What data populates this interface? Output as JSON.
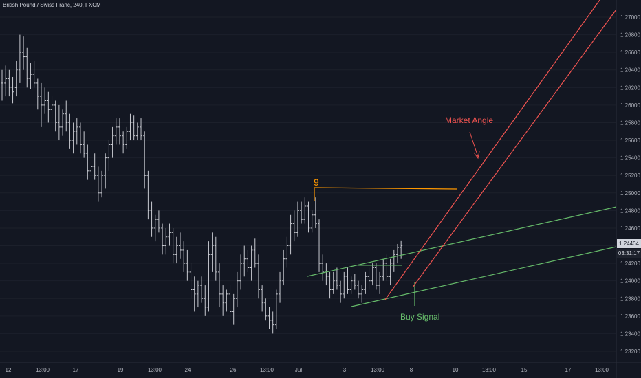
{
  "header": {
    "title": "British Pound / Swiss Franc, 240, FXCM"
  },
  "chart_data": {
    "type": "ohlc",
    "symbol": "British Pound / Swiss Franc",
    "interval": "240",
    "source": "FXCM",
    "y_ticks": [
      1.232,
      1.234,
      1.236,
      1.238,
      1.24,
      1.242,
      1.244,
      1.246,
      1.248,
      1.25,
      1.252,
      1.254,
      1.256,
      1.258,
      1.26,
      1.262,
      1.264,
      1.266,
      1.268,
      1.27
    ],
    "ylim": [
      1.2312,
      1.2718
    ],
    "x_ticks": [
      "12",
      "13:00",
      "17",
      "19",
      "13:00",
      "24",
      "26",
      "13:00",
      "Jul",
      "3",
      "13:00",
      "8",
      "10",
      "13:00",
      "15",
      "17",
      "13:00"
    ],
    "last_price": "1.24404",
    "countdown": "03:31:17",
    "annotations": [
      {
        "text": "9",
        "color": "#ff9800"
      },
      {
        "text": "Market Angle",
        "color": "#ef5350"
      },
      {
        "text": "Buy Signal",
        "color": "#66bb6a"
      }
    ],
    "bars": [
      [
        1.2625,
        1.264,
        1.2605,
        1.2625
      ],
      [
        1.2625,
        1.2645,
        1.261,
        1.263
      ],
      [
        1.263,
        1.264,
        1.261,
        1.262
      ],
      [
        1.262,
        1.2632,
        1.2602,
        1.2615
      ],
      [
        1.262,
        1.265,
        1.261,
        1.264
      ],
      [
        1.264,
        1.268,
        1.2625,
        1.266
      ],
      [
        1.266,
        1.2678,
        1.264,
        1.2655
      ],
      [
        1.2655,
        1.2665,
        1.262,
        1.263
      ],
      [
        1.263,
        1.2648,
        1.2618,
        1.2635
      ],
      [
        1.2635,
        1.265,
        1.262,
        1.2625
      ],
      [
        1.2625,
        1.263,
        1.2595,
        1.261
      ],
      [
        1.261,
        1.2625,
        1.2575,
        1.26
      ],
      [
        1.26,
        1.262,
        1.259,
        1.2605
      ],
      [
        1.2605,
        1.2615,
        1.258,
        1.2595
      ],
      [
        1.2595,
        1.261,
        1.2585,
        1.26
      ],
      [
        1.26,
        1.2605,
        1.257,
        1.258
      ],
      [
        1.258,
        1.26,
        1.256,
        1.2575
      ],
      [
        1.2575,
        1.2595,
        1.2565,
        1.259
      ],
      [
        1.259,
        1.2605,
        1.257,
        1.258
      ],
      [
        1.258,
        1.259,
        1.255,
        1.256
      ],
      [
        1.256,
        1.258,
        1.2545,
        1.257
      ],
      [
        1.257,
        1.2585,
        1.2555,
        1.2575
      ],
      [
        1.2575,
        1.258,
        1.2545,
        1.2555
      ],
      [
        1.2555,
        1.257,
        1.254,
        1.2545
      ],
      [
        1.2545,
        1.2555,
        1.2515,
        1.2525
      ],
      [
        1.2525,
        1.254,
        1.251,
        1.253
      ],
      [
        1.253,
        1.2545,
        1.2515,
        1.252
      ],
      [
        1.252,
        1.253,
        1.249,
        1.25
      ],
      [
        1.25,
        1.2525,
        1.2495,
        1.252
      ],
      [
        1.252,
        1.2545,
        1.2505,
        1.254
      ],
      [
        1.254,
        1.256,
        1.2525,
        1.2555
      ],
      [
        1.2555,
        1.2575,
        1.254,
        1.2565
      ],
      [
        1.2565,
        1.2585,
        1.2555,
        1.2575
      ],
      [
        1.2575,
        1.2585,
        1.2555,
        1.2565
      ],
      [
        1.2565,
        1.257,
        1.2545,
        1.2555
      ],
      [
        1.2555,
        1.2575,
        1.255,
        1.257
      ],
      [
        1.257,
        1.259,
        1.256,
        1.258
      ],
      [
        1.258,
        1.2588,
        1.256,
        1.2565
      ],
      [
        1.2565,
        1.258,
        1.256,
        1.2575
      ],
      [
        1.2575,
        1.2585,
        1.256,
        1.2565
      ],
      [
        1.2565,
        1.257,
        1.2505,
        1.252
      ],
      [
        1.252,
        1.2525,
        1.247,
        1.248
      ],
      [
        1.248,
        1.249,
        1.245,
        1.246
      ],
      [
        1.246,
        1.2475,
        1.2445,
        1.247
      ],
      [
        1.247,
        1.248,
        1.2455,
        1.246
      ],
      [
        1.246,
        1.2465,
        1.243,
        1.244
      ],
      [
        1.244,
        1.246,
        1.243,
        1.245
      ],
      [
        1.245,
        1.2465,
        1.244,
        1.2455
      ],
      [
        1.2455,
        1.246,
        1.242,
        1.243
      ],
      [
        1.243,
        1.245,
        1.242,
        1.244
      ],
      [
        1.244,
        1.2455,
        1.2425,
        1.2435
      ],
      [
        1.2435,
        1.2445,
        1.241,
        1.242
      ],
      [
        1.242,
        1.2435,
        1.24,
        1.241
      ],
      [
        1.241,
        1.242,
        1.238,
        1.239
      ],
      [
        1.239,
        1.2405,
        1.2365,
        1.2385
      ],
      [
        1.2385,
        1.24,
        1.237,
        1.2395
      ],
      [
        1.2395,
        1.2405,
        1.2375,
        1.238
      ],
      [
        1.238,
        1.2395,
        1.236,
        1.237
      ],
      [
        1.237,
        1.2445,
        1.2365,
        1.243
      ],
      [
        1.243,
        1.2455,
        1.241,
        1.244
      ],
      [
        1.244,
        1.245,
        1.24,
        1.241
      ],
      [
        1.241,
        1.242,
        1.237,
        1.2385
      ],
      [
        1.2385,
        1.2395,
        1.236,
        1.2375
      ],
      [
        1.2375,
        1.239,
        1.2365,
        1.2385
      ],
      [
        1.2385,
        1.2395,
        1.2355,
        1.2365
      ],
      [
        1.2365,
        1.2385,
        1.235,
        1.238
      ],
      [
        1.238,
        1.241,
        1.237,
        1.24
      ],
      [
        1.24,
        1.243,
        1.239,
        1.242
      ],
      [
        1.242,
        1.244,
        1.2405,
        1.2425
      ],
      [
        1.2425,
        1.2435,
        1.241,
        1.2415
      ],
      [
        1.2415,
        1.244,
        1.24,
        1.2435
      ],
      [
        1.2435,
        1.2448,
        1.2415,
        1.242
      ],
      [
        1.242,
        1.243,
        1.238,
        1.239
      ],
      [
        1.239,
        1.2395,
        1.2365,
        1.2375
      ],
      [
        1.2375,
        1.238,
        1.2355,
        1.236
      ],
      [
        1.236,
        1.237,
        1.2345,
        1.2355
      ],
      [
        1.2355,
        1.2365,
        1.234,
        1.235
      ],
      [
        1.235,
        1.239,
        1.2345,
        1.2385
      ],
      [
        1.2385,
        1.241,
        1.2375,
        1.24
      ],
      [
        1.24,
        1.2435,
        1.2395,
        1.2425
      ],
      [
        1.2425,
        1.245,
        1.2415,
        1.244
      ],
      [
        1.244,
        1.2475,
        1.243,
        1.2465
      ],
      [
        1.2465,
        1.248,
        1.2445,
        1.2455
      ],
      [
        1.2455,
        1.249,
        1.245,
        1.248
      ],
      [
        1.248,
        1.249,
        1.2465,
        1.247
      ],
      [
        1.247,
        1.2495,
        1.2465,
        1.2485
      ],
      [
        1.2485,
        1.249,
        1.2455,
        1.246
      ],
      [
        1.246,
        1.248,
        1.2455,
        1.2475
      ],
      [
        1.2475,
        1.2495,
        1.246,
        1.2465
      ],
      [
        1.2465,
        1.247,
        1.241,
        1.242
      ],
      [
        1.242,
        1.243,
        1.24,
        1.241
      ],
      [
        1.241,
        1.242,
        1.2395,
        1.2405
      ],
      [
        1.2405,
        1.241,
        1.238,
        1.239
      ],
      [
        1.239,
        1.241,
        1.2385,
        1.24
      ],
      [
        1.24,
        1.2415,
        1.239,
        1.2395
      ],
      [
        1.2395,
        1.24,
        1.2375,
        1.2385
      ],
      [
        1.2385,
        1.241,
        1.238,
        1.2405
      ],
      [
        1.2405,
        1.2415,
        1.2385,
        1.239
      ],
      [
        1.239,
        1.2405,
        1.2385,
        1.24
      ],
      [
        1.24,
        1.2408,
        1.239,
        1.2395
      ],
      [
        1.2395,
        1.24,
        1.238,
        1.2385
      ],
      [
        1.2385,
        1.2395,
        1.2375,
        1.239
      ],
      [
        1.239,
        1.241,
        1.2385,
        1.2405
      ],
      [
        1.2405,
        1.2415,
        1.239,
        1.24
      ],
      [
        1.24,
        1.242,
        1.2395,
        1.2415
      ],
      [
        1.2415,
        1.242,
        1.239,
        1.2395
      ],
      [
        1.2395,
        1.241,
        1.2385,
        1.2405
      ],
      [
        1.2405,
        1.2425,
        1.24,
        1.242
      ],
      [
        1.242,
        1.243,
        1.24,
        1.2405
      ],
      [
        1.2405,
        1.2425,
        1.2395,
        1.242
      ],
      [
        1.242,
        1.2435,
        1.241,
        1.243
      ],
      [
        1.243,
        1.2442,
        1.242,
        1.2438
      ],
      [
        1.2438,
        1.2446,
        1.2425,
        1.244
      ]
    ]
  }
}
